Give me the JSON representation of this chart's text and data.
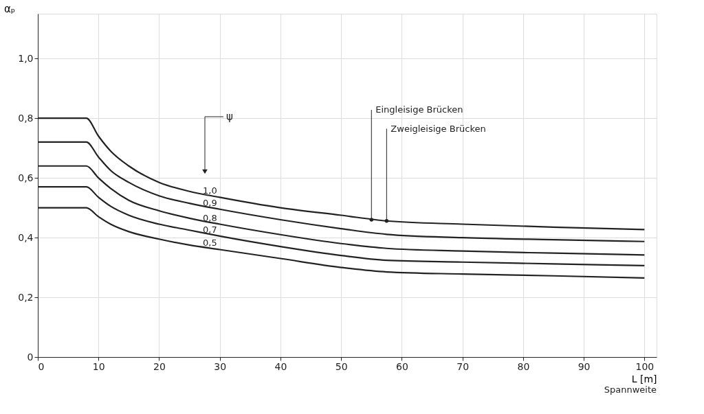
{
  "chart_data": {
    "type": "line",
    "xlabel": "L [m]",
    "ylabel": "αₚ",
    "x": [
      0,
      8,
      10,
      12,
      15,
      20,
      25,
      30,
      40,
      50,
      57.5,
      70,
      85,
      100
    ],
    "series": [
      {
        "name": "1,0",
        "color": "#222222",
        "values": [
          0.8,
          0.8,
          0.74,
          0.69,
          0.64,
          0.585,
          0.555,
          0.535,
          0.5,
          0.475,
          0.456,
          0.445,
          0.435,
          0.427
        ]
      },
      {
        "name": "0,9",
        "color": "#222222",
        "values": [
          0.72,
          0.72,
          0.67,
          0.625,
          0.585,
          0.54,
          0.515,
          0.495,
          0.46,
          0.43,
          0.411,
          0.4,
          0.393,
          0.387
        ]
      },
      {
        "name": "0,8",
        "color": "#222222",
        "values": [
          0.64,
          0.64,
          0.6,
          0.565,
          0.525,
          0.49,
          0.465,
          0.445,
          0.41,
          0.38,
          0.364,
          0.355,
          0.348,
          0.342
        ]
      },
      {
        "name": "0,7",
        "color": "#222222",
        "values": [
          0.57,
          0.57,
          0.535,
          0.505,
          0.475,
          0.445,
          0.425,
          0.405,
          0.37,
          0.34,
          0.324,
          0.318,
          0.312,
          0.306
        ]
      },
      {
        "name": "0,5",
        "color": "#222222",
        "values": [
          0.5,
          0.5,
          0.47,
          0.445,
          0.42,
          0.395,
          0.375,
          0.36,
          0.33,
          0.3,
          0.285,
          0.278,
          0.272,
          0.265
        ]
      }
    ],
    "xlim": [
      0,
      102
    ],
    "ylim": [
      0,
      1.15
    ],
    "xticks": [
      0,
      10,
      20,
      30,
      40,
      50,
      60,
      70,
      80,
      90,
      100
    ],
    "yticks": [
      {
        "value": 0,
        "label": "0"
      },
      {
        "value": 0.2,
        "label": "0,2"
      },
      {
        "value": 0.4,
        "label": "0,4"
      },
      {
        "value": 0.6,
        "label": "0,6"
      },
      {
        "value": 0.8,
        "label": "0,8"
      },
      {
        "value": 1.0,
        "label": "1,0"
      }
    ],
    "grid": true,
    "legend": false,
    "marker": "none",
    "line_style": "solid",
    "annotations": [
      {
        "text": "Eingleisige Brücken",
        "x": 55,
        "y": 0.46
      },
      {
        "text": "Zweigleisige Brücken",
        "x": 57.5,
        "y": 0.456
      },
      "ψ",
      "Spannweite"
    ]
  }
}
